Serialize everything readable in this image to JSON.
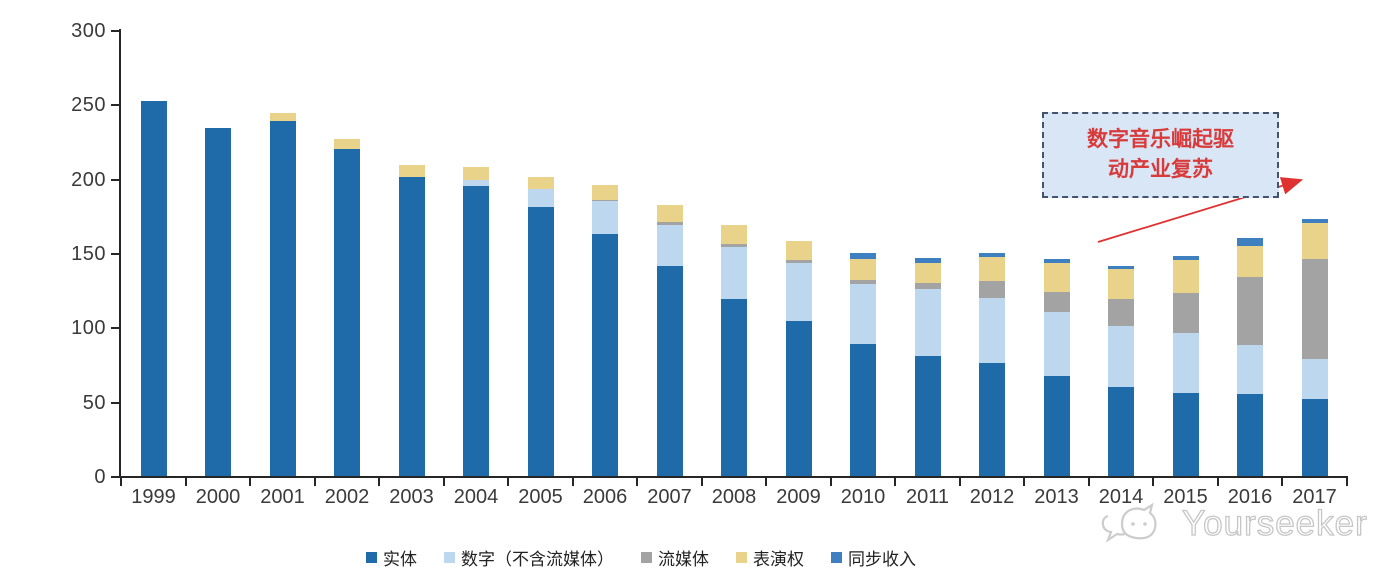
{
  "chart_data": {
    "type": "bar",
    "variant": "stacked-vertical",
    "categories": [
      "1999",
      "2000",
      "2001",
      "2002",
      "2003",
      "2004",
      "2005",
      "2006",
      "2007",
      "2008",
      "2009",
      "2010",
      "2011",
      "2012",
      "2013",
      "2014",
      "2015",
      "2016",
      "2017"
    ],
    "series": [
      {
        "name": "实体",
        "color": "#1F6BA9",
        "values": [
          252,
          234,
          239,
          220,
          201,
          195,
          181,
          163,
          141,
          119,
          104,
          89,
          81,
          76,
          67,
          60,
          56,
          55,
          52
        ]
      },
      {
        "name": "数字（不含流媒体）",
        "color": "#BDD7EE",
        "values": [
          0,
          0,
          0,
          0,
          0,
          4,
          12,
          22,
          28,
          35,
          39,
          40,
          45,
          44,
          43,
          41,
          40,
          33,
          27
        ]
      },
      {
        "name": "流媒体",
        "color": "#A3A3A3",
        "values": [
          0,
          0,
          0,
          0,
          0,
          0,
          0,
          1,
          2,
          2,
          2,
          3,
          4,
          11,
          14,
          18,
          27,
          46,
          67
        ]
      },
      {
        "name": "表演权",
        "color": "#E9D38B",
        "values": [
          0,
          0,
          5,
          7,
          8,
          9,
          8,
          10,
          11,
          13,
          13,
          14,
          13,
          16,
          19,
          20,
          22,
          21,
          24
        ]
      },
      {
        "name": "同步收入",
        "color": "#3E80BF",
        "values": [
          0,
          0,
          0,
          0,
          0,
          0,
          0,
          0,
          0,
          0,
          0,
          4,
          4,
          3,
          3,
          2,
          3,
          5,
          3
        ]
      }
    ],
    "ylim": [
      0,
      300
    ],
    "yticks": [
      0,
      50,
      100,
      150,
      200,
      250,
      300
    ],
    "grid": false,
    "legend_position": "bottom"
  },
  "annotation": {
    "line1": "数字音乐崛起驱",
    "line2": "动产业复苏",
    "text_color": "#D93A3A",
    "box_fill": "#D9E6F5",
    "box_border": "#44546A",
    "arrow_color": "#E03131"
  },
  "watermark": {
    "text": "Yourseeker"
  },
  "axis": {
    "line_color": "#262626",
    "label_color": "#3a3a3a"
  }
}
